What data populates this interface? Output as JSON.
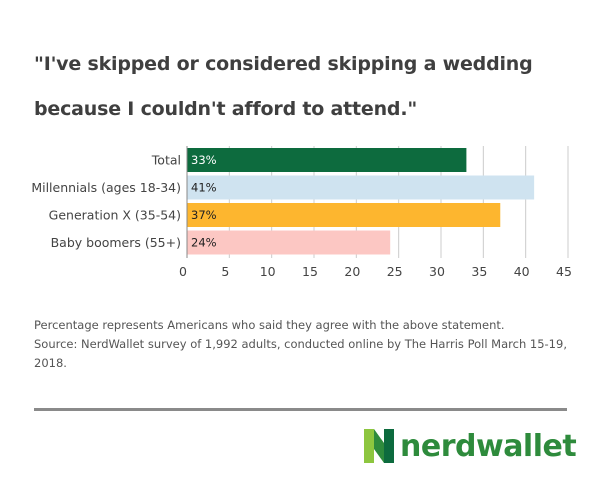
{
  "title_lines": [
    "\"I've skipped or considered skipping a wedding",
    "because I couldn't afford to attend.\""
  ],
  "chart_data": {
    "type": "bar",
    "orientation": "horizontal",
    "categories": [
      "Total",
      "Millennials (ages 18-34)",
      "Generation X (35-54)",
      "Baby boomers (55+)"
    ],
    "values": [
      33,
      41,
      37,
      24
    ],
    "value_labels": [
      "33%",
      "41%",
      "37%",
      "24%"
    ],
    "bar_colors": [
      "#0d6b3e",
      "#cfe3f0",
      "#fdb62f",
      "#fcc7c3"
    ],
    "label_colors": [
      "#ffffff",
      "#222222",
      "#222222",
      "#222222"
    ],
    "xlim": [
      0,
      45
    ],
    "xticks": [
      0,
      5,
      10,
      15,
      20,
      25,
      30,
      35,
      40,
      45
    ],
    "xtick_labels": [
      "0",
      "5",
      "10",
      "15",
      "20",
      "25",
      "30",
      "35",
      "40",
      "45"
    ],
    "grid": true,
    "gridline_color": "#cccccc"
  },
  "footnote": {
    "line1": "Percentage represents Americans who said they agree with the above statement.",
    "line2": "Source: NerdWallet survey of 1,992 adults, conducted online by The Harris Poll March 15-19, 2018."
  },
  "brand": {
    "name": "nerdwallet",
    "text_color": "#2e8b3c",
    "logo_colors": [
      "#8dc63f",
      "#2e8b3c",
      "#0d6b3e"
    ]
  }
}
